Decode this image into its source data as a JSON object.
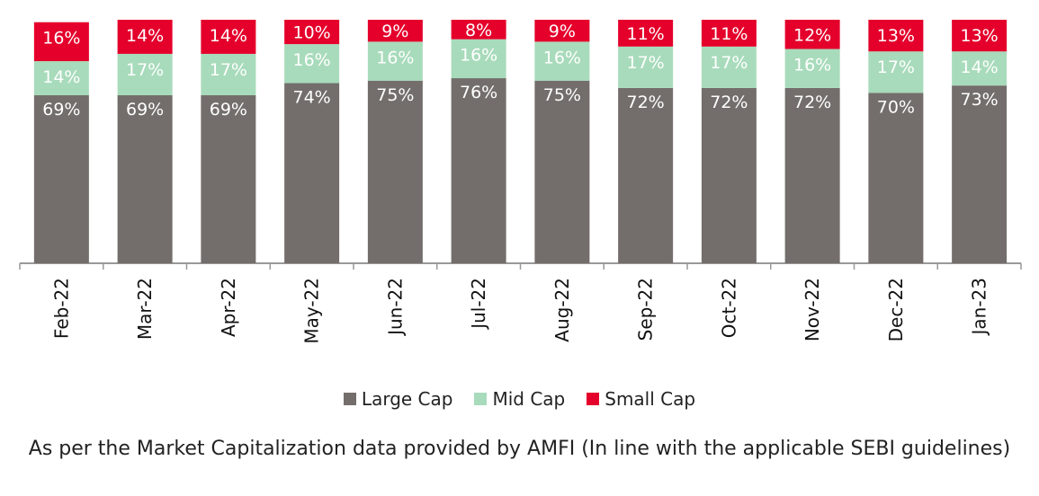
{
  "chart_data": {
    "type": "bar",
    "stacked": true,
    "categories": [
      "Feb-22",
      "Mar-22",
      "Apr-22",
      "May-22",
      "Jun-22",
      "Jul-22",
      "Aug-22",
      "Sep-22",
      "Oct-22",
      "Nov-22",
      "Dec-22",
      "Jan-23"
    ],
    "series": [
      {
        "name": "Large Cap",
        "color": "#736e6b",
        "values": [
          69,
          69,
          69,
          74,
          75,
          76,
          75,
          72,
          72,
          72,
          70,
          73
        ]
      },
      {
        "name": "Mid Cap",
        "color": "#a8dbbb",
        "values": [
          14,
          17,
          17,
          16,
          16,
          16,
          16,
          17,
          17,
          16,
          17,
          14
        ]
      },
      {
        "name": "Small Cap",
        "color": "#e4002b",
        "values": [
          16,
          14,
          14,
          10,
          9,
          8,
          9,
          11,
          11,
          12,
          13,
          13
        ]
      }
    ],
    "value_labels": {
      "Large Cap": [
        "69%",
        "69%",
        "69%",
        "74%",
        "75%",
        "76%",
        "75%",
        "72%",
        "72%",
        "72%",
        "70%",
        "73%"
      ],
      "Mid Cap": [
        "14%",
        "17%",
        "17%",
        "16%",
        "16%",
        "16%",
        "16%",
        "17%",
        "17%",
        "16%",
        "17%",
        "14%"
      ],
      "Small Cap": [
        "16%",
        "14%",
        "14%",
        "10%",
        "9%",
        "8%",
        "9%",
        "11%",
        "11%",
        "12%",
        "13%",
        "13%"
      ]
    },
    "ylim": [
      0,
      100
    ],
    "grid": false,
    "legend_position": "bottom"
  },
  "legend": [
    {
      "label": "Large Cap",
      "color": "#736e6b"
    },
    {
      "label": "Mid Cap",
      "color": "#a8dbbb"
    },
    {
      "label": "Small Cap",
      "color": "#e4002b"
    }
  ],
  "footnote": "As per the Market Capitalization data provided by AMFI (In line with the applicable SEBI guidelines)"
}
